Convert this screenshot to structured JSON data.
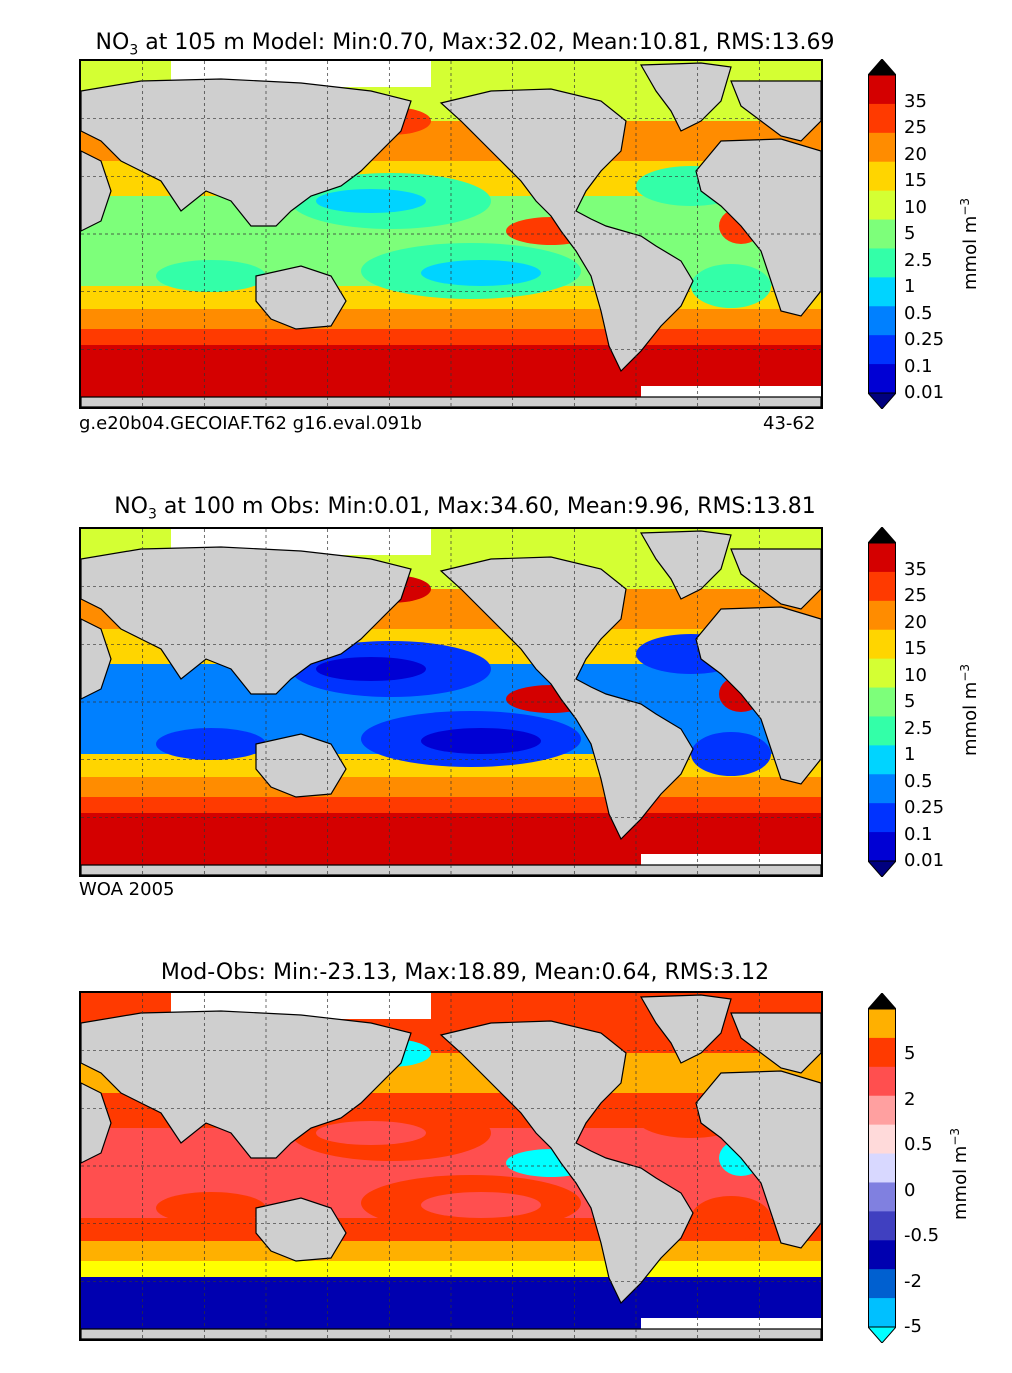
{
  "panels": [
    {
      "id": "model",
      "title_pre": "NO",
      "title_sub": "3",
      "title_post": " at 105 m Model: Min:0.70, Max:32.02, Mean:10.81, RMS:13.69",
      "footer_left": "g.e20b04.GECOIAF.T62 g16.eval.091b",
      "footer_right": "43-62",
      "colorbar_ticks": [
        "35",
        "25",
        "20",
        "15",
        "10",
        "5",
        "2.5",
        "1",
        "0.5",
        "0.25",
        "0.1",
        "0.01"
      ],
      "colorbar_colors": [
        "#7f0000",
        "#d40000",
        "#ff3a00",
        "#ff8c00",
        "#ffd500",
        "#d4ff33",
        "#7dff7a",
        "#33ffa8",
        "#00d4ff",
        "#0080ff",
        "#0033ff",
        "#0000d4",
        "#00007f"
      ],
      "unit": "mmol m",
      "unit_exp": "−3",
      "field_colors": {
        "south": "#d40000",
        "subsouth": "#ff3a00",
        "mid": "#ff8c00",
        "temp": "#ffd500",
        "gyre": "#7dff7a",
        "gyre_core": "#33ffa8",
        "core": "#00d4ff",
        "arctic": "#d4ff33",
        "upwell": "#ff3a00"
      }
    },
    {
      "id": "obs",
      "title_pre": "NO",
      "title_sub": "3",
      "title_post": " at 100 m Obs: Min:0.01, Max:34.60, Mean:9.96, RMS:13.81",
      "footer_left": "WOA 2005",
      "footer_right": "",
      "colorbar_ticks": [
        "35",
        "25",
        "20",
        "15",
        "10",
        "5",
        "2.5",
        "1",
        "0.5",
        "0.25",
        "0.1",
        "0.01"
      ],
      "colorbar_colors": [
        "#7f0000",
        "#d40000",
        "#ff3a00",
        "#ff8c00",
        "#ffd500",
        "#d4ff33",
        "#7dff7a",
        "#33ffa8",
        "#00d4ff",
        "#0080ff",
        "#0033ff",
        "#0000d4",
        "#00007f"
      ],
      "unit": "mmol m",
      "unit_exp": "−3",
      "field_colors": {
        "south": "#d40000",
        "subsouth": "#ff3a00",
        "mid": "#ff8c00",
        "temp": "#ffd500",
        "gyre": "#0080ff",
        "gyre_core": "#0033ff",
        "core": "#0000d4",
        "arctic": "#d4ff33",
        "upwell": "#d40000"
      }
    },
    {
      "id": "diff",
      "title_pre": "Mod-Obs: Min:-23.13, Max:18.89, Mean:0.64, RMS:3.12",
      "title_sub": "",
      "title_post": "",
      "footer_left": "",
      "footer_right": "",
      "colorbar_ticks": [
        "5",
        "2",
        "0.5",
        "0",
        "-0.5",
        "-2",
        "-5"
      ],
      "colorbar_colors": [
        "#ffff00",
        "#ffb000",
        "#ff3a00",
        "#ff4f4f",
        "#ffa0a0",
        "#ffdada",
        "#d8d8ff",
        "#8080e0",
        "#4040c0",
        "#0000b0",
        "#0060d0",
        "#00c0ff",
        "#00ffff"
      ],
      "unit": "mmol m",
      "unit_exp": "−3",
      "field_colors": {
        "south": "#0000b0",
        "subsouth": "#ffff00",
        "mid": "#ffb000",
        "temp": "#ff3a00",
        "gyre": "#ff4f4f",
        "gyre_core": "#ff3a00",
        "core": "#ff4f4f",
        "arctic": "#ff3a00",
        "upwell": "#00ffff"
      }
    }
  ]
}
